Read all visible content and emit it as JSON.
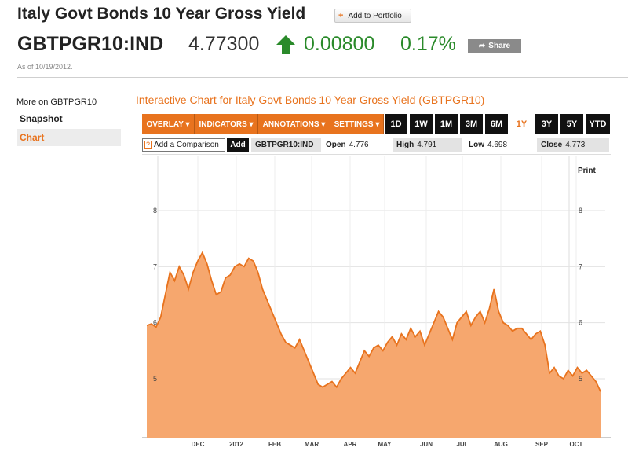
{
  "header": {
    "title": "Italy Govt Bonds 10 Year Gross Yield",
    "add_portfolio_label": "Add to Portfolio",
    "ticker": "GBTPGR10:IND",
    "price": "4.77300",
    "change": "0.00800",
    "change_pct": "0.17%",
    "share_label": "Share",
    "as_of": "As of 10/19/2012.",
    "up_color": "#2a8a2a"
  },
  "sidebar": {
    "more_on": "More on GBTPGR10",
    "items": [
      {
        "label": "Snapshot",
        "active": false
      },
      {
        "label": "Chart",
        "active": true
      }
    ]
  },
  "chart_panel": {
    "heading": "Interactive Chart for Italy Govt Bonds 10 Year Gross Yield (GBTPGR10)",
    "toolbar": [
      "OVERLAY ▾",
      "INDICATORS ▾",
      "ANNOTATIONS ▾",
      "SETTINGS ▾"
    ],
    "ranges": [
      "1D",
      "1W",
      "1M",
      "3M",
      "6M",
      "1Y",
      "3Y",
      "5Y",
      "YTD"
    ],
    "active_range": "1Y",
    "compare_label": "Add a Comparison",
    "add_label": "Add",
    "symbol": "GBTPGR10:IND",
    "open": {
      "label": "Open",
      "value": "4.776"
    },
    "high": {
      "label": "High",
      "value": "4.791"
    },
    "low": {
      "label": "Low",
      "value": "4.698"
    },
    "close": {
      "label": "Close",
      "value": "4.773"
    },
    "print_label": "Print",
    "accent_color": "#e8731e"
  },
  "chart_data": {
    "type": "area",
    "title": "",
    "xlabel": "",
    "ylabel": "",
    "x_ticks": [
      "DEC",
      "2012",
      "FEB",
      "MAR",
      "APR",
      "MAY",
      "JUN",
      "JUL",
      "AUG",
      "SEP",
      "OCT"
    ],
    "y_ticks": [
      5,
      6,
      7,
      8
    ],
    "ylim": [
      4.0,
      8.5
    ],
    "grid": true,
    "series": [
      {
        "values": [
          5.95,
          5.98,
          5.92,
          6.1,
          6.5,
          6.9,
          6.75,
          7.0,
          6.85,
          6.6,
          6.9,
          7.1,
          7.25,
          7.05,
          6.75,
          6.5,
          6.55,
          6.8,
          6.85,
          7.0,
          7.05,
          7.0,
          7.15,
          7.1,
          6.9,
          6.6,
          6.4,
          6.2,
          6.0,
          5.8,
          5.65,
          5.6,
          5.55,
          5.7,
          5.5,
          5.3,
          5.1,
          4.9,
          4.85,
          4.9,
          4.95,
          4.85,
          5.0,
          5.1,
          5.2,
          5.1,
          5.3,
          5.5,
          5.4,
          5.55,
          5.6,
          5.5,
          5.65,
          5.75,
          5.6,
          5.8,
          5.7,
          5.9,
          5.75,
          5.85,
          5.6,
          5.8,
          6.0,
          6.2,
          6.1,
          5.9,
          5.7,
          6.0,
          6.1,
          6.2,
          5.95,
          6.1,
          6.2,
          6.0,
          6.25,
          6.6,
          6.2,
          6.0,
          5.95,
          5.85,
          5.9,
          5.9,
          5.8,
          5.7,
          5.8,
          5.85,
          5.6,
          5.1,
          5.2,
          5.05,
          5.0,
          5.15,
          5.05,
          5.2,
          5.1,
          5.15,
          5.05,
          4.95,
          4.773
        ]
      }
    ]
  }
}
